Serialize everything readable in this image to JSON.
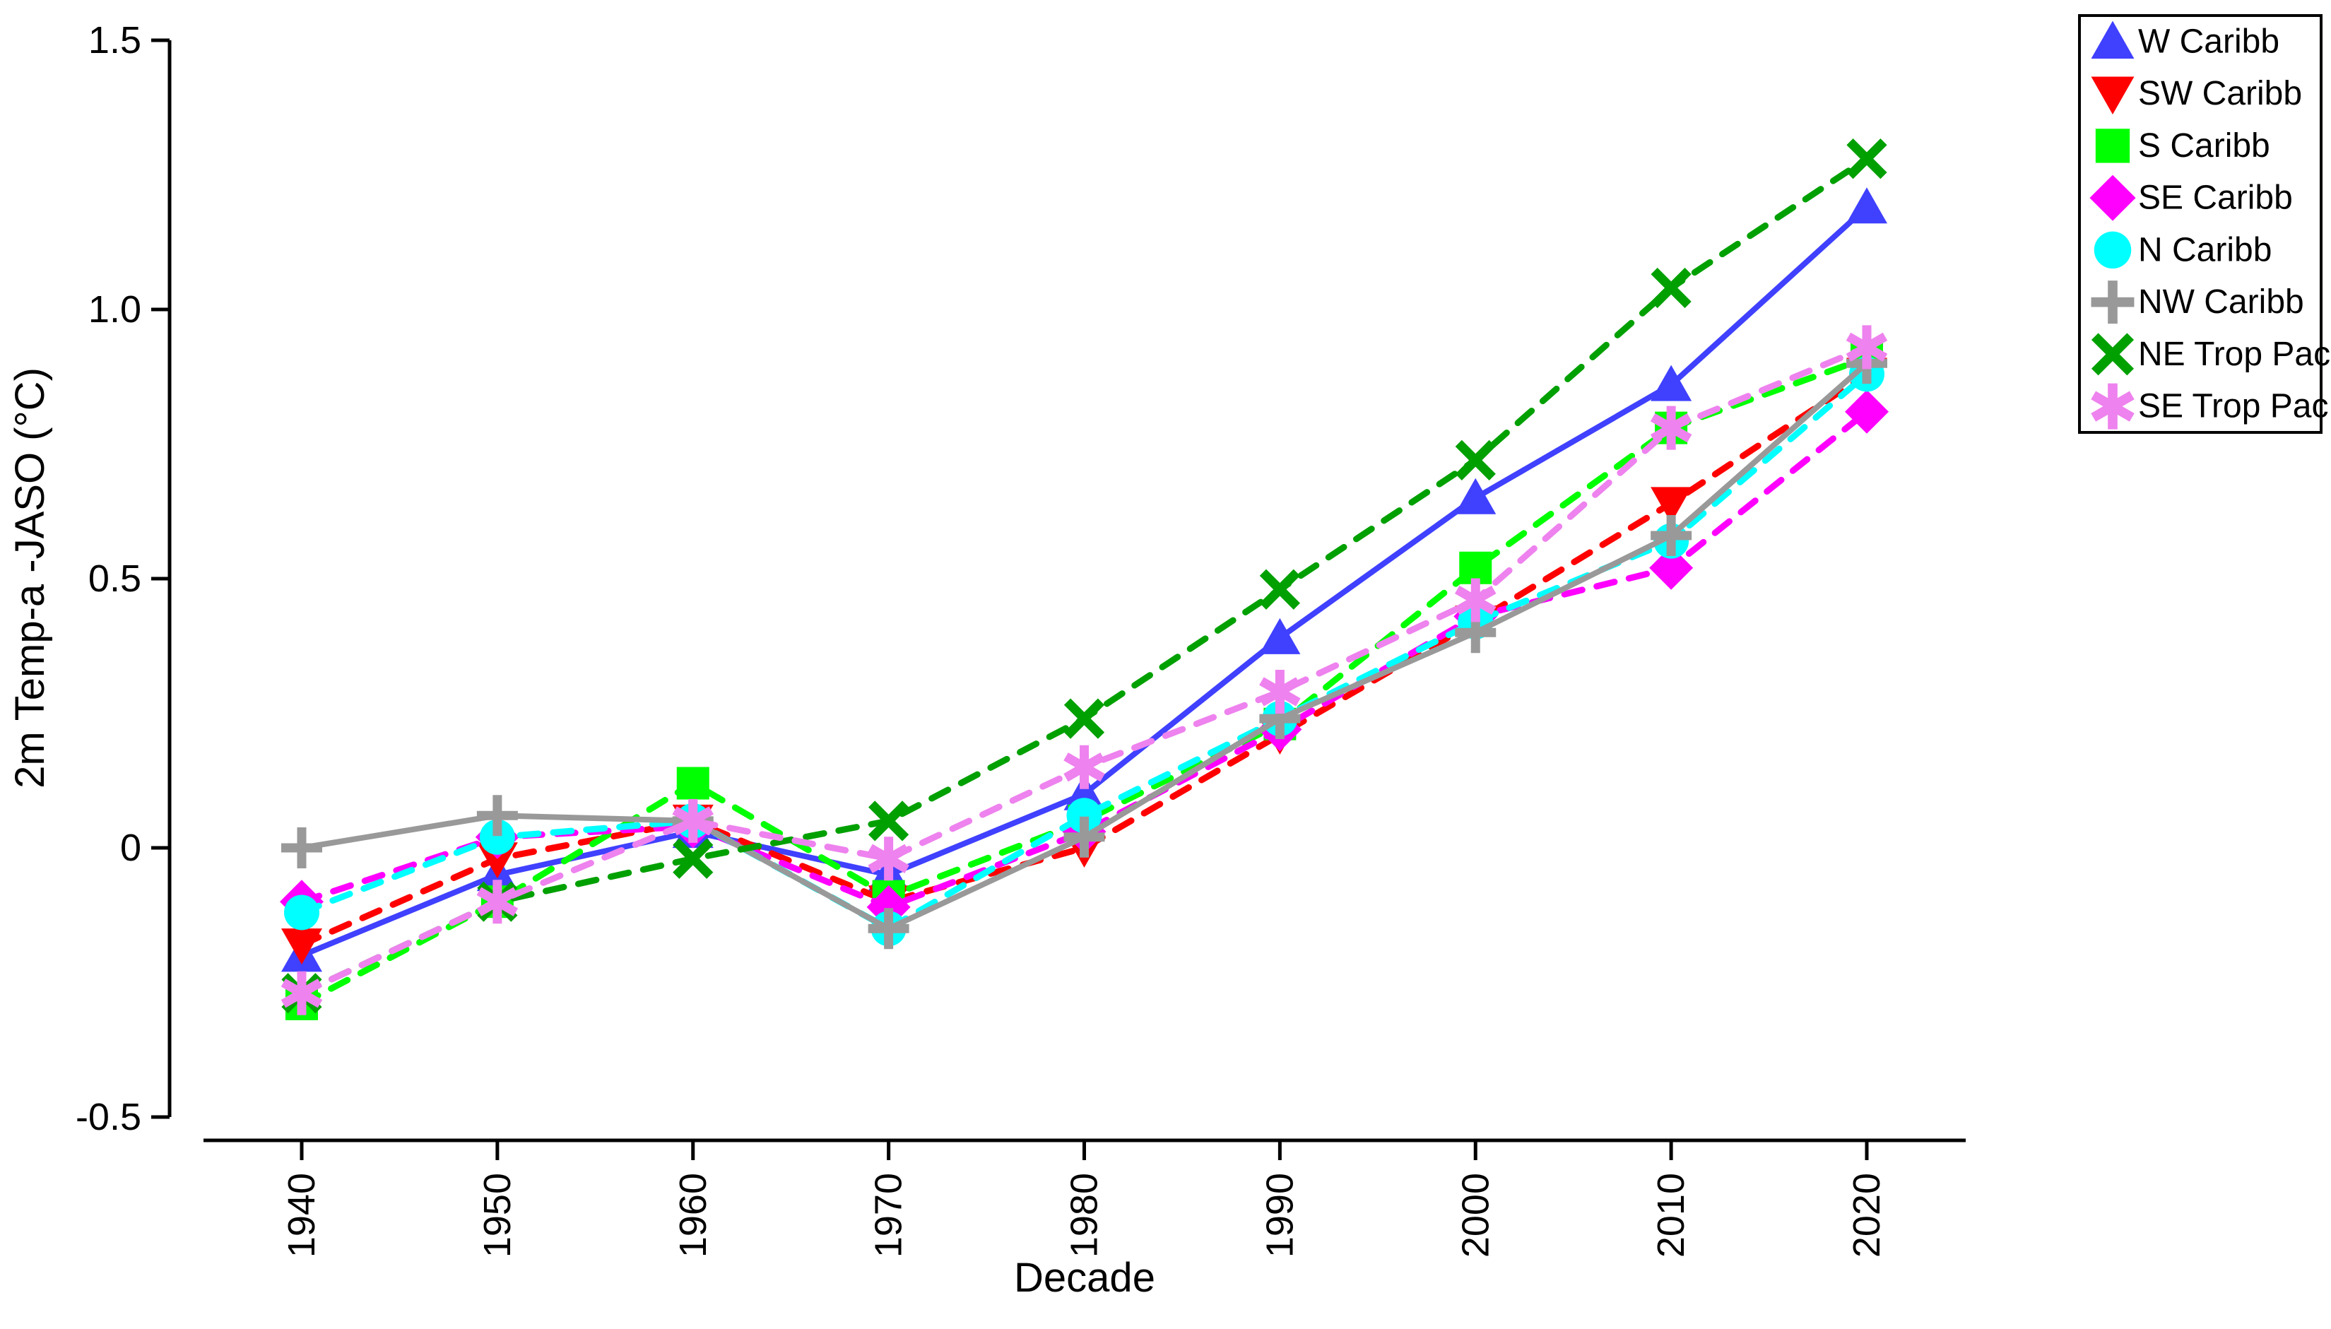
{
  "figure": {
    "background": "#ffffff",
    "axis_color": "#000000",
    "legend_border_color": "#000000"
  },
  "chart_data": {
    "type": "line",
    "title": "",
    "xlabel": "Decade",
    "ylabel": "2m Temp-a -JASO (°C)",
    "x": [
      1940,
      1950,
      1960,
      1970,
      1980,
      1990,
      2000,
      2010,
      2020
    ],
    "x_tick_labels": [
      "1940",
      "1950",
      "1960",
      "1970",
      "1980",
      "1990",
      "2000",
      "2010",
      "2020"
    ],
    "y_ticks": [
      {
        "value": 1.5,
        "label": "1.5"
      },
      {
        "value": 1.0,
        "label": "1.0"
      },
      {
        "value": 0.5,
        "label": "0.5"
      },
      {
        "value": 0.0,
        "label": "0"
      },
      {
        "value": -0.5,
        "label": "-0.5"
      }
    ],
    "ylim": [
      -0.5,
      1.5
    ],
    "grid": false,
    "legend_position": "outside-top-right",
    "series": [
      {
        "name": "W Caribb",
        "color": "#4040ff",
        "marker": "triangle-up",
        "line": "solid",
        "values": [
          -0.2,
          -0.05,
          0.03,
          -0.05,
          0.1,
          0.39,
          0.65,
          0.86,
          1.19
        ]
      },
      {
        "name": "SW Caribb",
        "color": "#ff0000",
        "marker": "triangle-down",
        "line": "dashed",
        "values": [
          -0.18,
          -0.02,
          0.05,
          -0.1,
          0.0,
          0.21,
          0.42,
          0.64,
          0.88
        ]
      },
      {
        "name": "S Caribb",
        "color": "#00ff00",
        "marker": "square",
        "line": "dashed",
        "values": [
          -0.29,
          -0.1,
          0.12,
          -0.09,
          0.05,
          0.23,
          0.52,
          0.78,
          0.91
        ]
      },
      {
        "name": "SE Caribb",
        "color": "#ff00ff",
        "marker": "diamond",
        "line": "dashed",
        "values": [
          -0.1,
          0.02,
          0.04,
          -0.11,
          0.03,
          0.22,
          0.43,
          0.52,
          0.81
        ]
      },
      {
        "name": "N Caribb",
        "color": "#00ffff",
        "marker": "circle",
        "line": "dashed",
        "values": [
          -0.12,
          0.02,
          0.05,
          -0.15,
          0.06,
          0.24,
          0.42,
          0.57,
          0.88
        ]
      },
      {
        "name": "NW Caribb",
        "color": "#999999",
        "marker": "plus",
        "line": "solid",
        "values": [
          0.0,
          0.06,
          0.05,
          -0.15,
          0.02,
          0.24,
          0.4,
          0.58,
          0.9
        ]
      },
      {
        "name": "NE Trop Pac",
        "color": "#00a000",
        "marker": "x",
        "line": "dashed",
        "values": [
          -0.27,
          -0.1,
          -0.02,
          0.05,
          0.24,
          0.48,
          0.72,
          1.04,
          1.28
        ]
      },
      {
        "name": "SE Trop Pac",
        "color": "#ee82ee",
        "marker": "asterisk",
        "line": "dashed",
        "values": [
          -0.27,
          -0.1,
          0.05,
          -0.02,
          0.15,
          0.29,
          0.46,
          0.78,
          0.93
        ]
      }
    ]
  }
}
